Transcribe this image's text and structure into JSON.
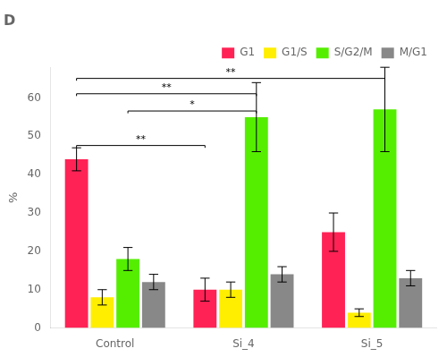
{
  "chart_data": {
    "type": "bar",
    "title": "D",
    "categories": [
      "Control",
      "Si_4",
      "Si_5"
    ],
    "series": [
      {
        "name": "G1",
        "color": "#FF2255",
        "values": [
          44,
          10,
          25
        ],
        "errors": [
          3,
          3,
          5
        ]
      },
      {
        "name": "G1/S",
        "color": "#FFEE00",
        "values": [
          8,
          10,
          4
        ],
        "errors": [
          2,
          2,
          1
        ]
      },
      {
        "name": "S/G2/M",
        "color": "#55EE00",
        "values": [
          18,
          55,
          57
        ],
        "errors": [
          3,
          9,
          11
        ]
      },
      {
        "name": "M/G1",
        "color": "#888888",
        "values": [
          12,
          14,
          13
        ],
        "errors": [
          2,
          2,
          2
        ]
      }
    ],
    "ylabel": "%",
    "ylim": [
      0,
      68
    ],
    "yticks": [
      0,
      10,
      20,
      30,
      40,
      50,
      60
    ],
    "grid": false,
    "legend": "upper right",
    "annotations": [
      {
        "text": "**",
        "from": {
          "group": "Control",
          "category": "G1"
        },
        "to": {
          "group": "Si_4",
          "category": "G1"
        },
        "y": 47,
        "height": 0.6
      },
      {
        "text": "*",
        "from": {
          "group": "Control",
          "category": "S/G2/M"
        },
        "to": {
          "group": "Si_4",
          "category": "S/G2/M"
        },
        "y": 56,
        "height": 0.6
      },
      {
        "text": "**",
        "from": {
          "group": "Control",
          "category": "G1"
        },
        "to": {
          "group": "Si_4",
          "category": "S/G2/M"
        },
        "y": 60.5,
        "height": 0.6
      },
      {
        "text": "**",
        "from": {
          "group": "Control",
          "category": "G1"
        },
        "to": {
          "group": "Si_5",
          "category": "S/G2/M"
        },
        "y": 64.5,
        "height": 0.6
      }
    ]
  }
}
